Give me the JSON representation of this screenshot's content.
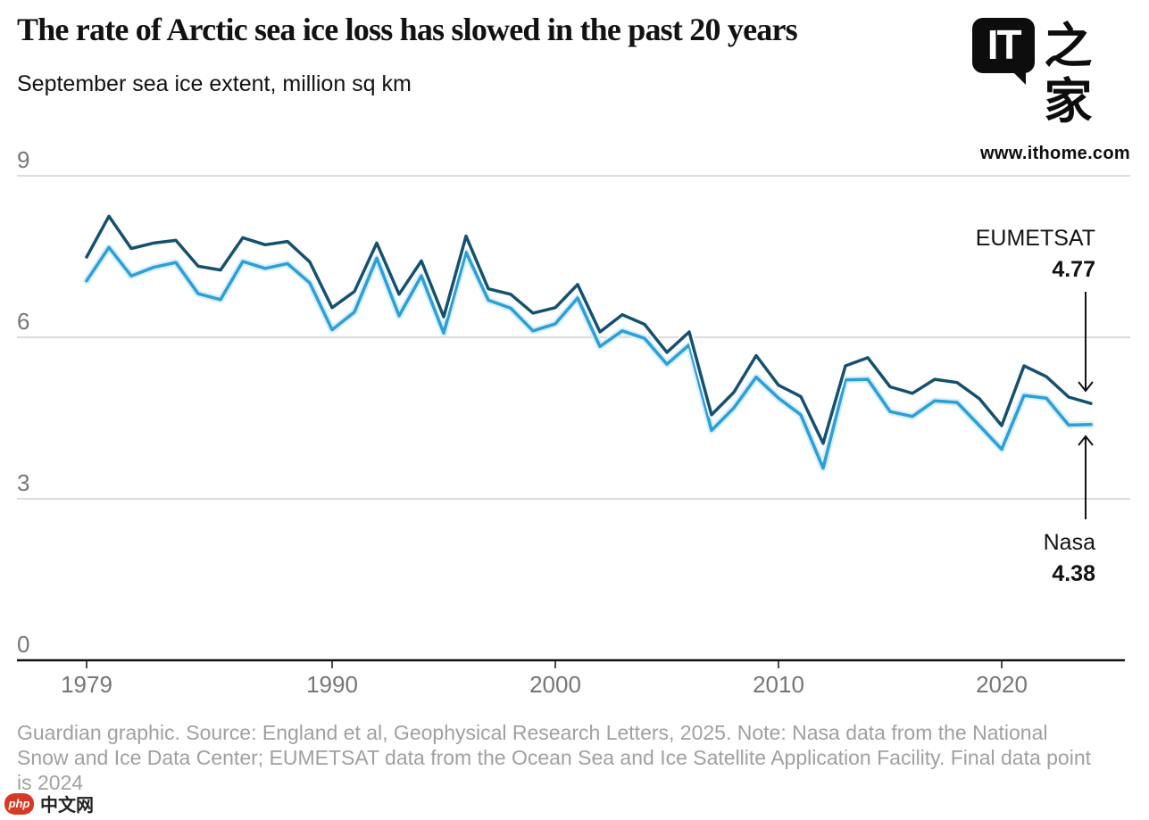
{
  "header": {
    "title": "The rate of Arctic sea ice loss has slowed in the past 20 years",
    "subtitle": "September sea ice extent, million sq km"
  },
  "branding": {
    "logo_text": "IT",
    "logo_cjk": "之家",
    "website": "www.ithome.com"
  },
  "annotations": {
    "eumetsat_label": "EUMETSAT",
    "eumetsat_value": "4.77",
    "nasa_label": "Nasa",
    "nasa_value": "4.38"
  },
  "footer": {
    "caption": "Guardian graphic. Source: England et al, Geophysical Research Letters, 2025. Note: Nasa data from the National Snow and Ice Data Center; EUMETSAT data from the Ocean Sea and Ice Satellite Application Facility. Final data point is 2024"
  },
  "watermark": {
    "badge": "php",
    "text": "中文网"
  },
  "colors": {
    "eumetsat_line": "#15516f",
    "nasa_line": "#2e9fd6",
    "nasa_halo": "#d9f0fa",
    "grid": "#dcdcdc",
    "axis": "#121212",
    "tick_label": "#767676",
    "footer_text": "#a0a0a0"
  },
  "chart_data": {
    "type": "line",
    "title": "The rate of Arctic sea ice loss has slowed in the past 20 years",
    "xlabel": "",
    "ylabel": "September sea ice extent, million sq km",
    "ylim": [
      0,
      9
    ],
    "yticks": [
      0,
      3,
      6,
      9
    ],
    "xticks": [
      1979,
      1990,
      2000,
      2010,
      2020
    ],
    "grid": "horizontal",
    "legend_position": "end-of-line annotations",
    "x": [
      1979,
      1980,
      1981,
      1982,
      1983,
      1984,
      1985,
      1986,
      1987,
      1988,
      1989,
      1990,
      1991,
      1992,
      1993,
      1994,
      1995,
      1996,
      1997,
      1998,
      1999,
      2000,
      2001,
      2002,
      2003,
      2004,
      2005,
      2006,
      2007,
      2008,
      2009,
      2010,
      2011,
      2012,
      2013,
      2014,
      2015,
      2016,
      2017,
      2018,
      2019,
      2020,
      2021,
      2022,
      2023,
      2024
    ],
    "series": [
      {
        "name": "EUMETSAT",
        "final_value": 4.77,
        "values": [
          7.49,
          8.25,
          7.65,
          7.75,
          7.8,
          7.32,
          7.25,
          7.85,
          7.72,
          7.78,
          7.4,
          6.55,
          6.85,
          7.75,
          6.8,
          7.42,
          6.38,
          7.88,
          6.9,
          6.8,
          6.45,
          6.55,
          6.98,
          6.1,
          6.42,
          6.24,
          5.72,
          6.1,
          4.56,
          4.98,
          5.66,
          5.11,
          4.9,
          4.03,
          5.47,
          5.62,
          5.08,
          4.96,
          5.22,
          5.16,
          4.86,
          4.36,
          5.47,
          5.27,
          4.89,
          4.77
        ]
      },
      {
        "name": "Nasa",
        "final_value": 4.38,
        "values": [
          7.05,
          7.67,
          7.14,
          7.3,
          7.39,
          6.81,
          6.7,
          7.41,
          7.28,
          7.37,
          7.01,
          6.14,
          6.47,
          7.47,
          6.4,
          7.14,
          6.08,
          7.58,
          6.69,
          6.54,
          6.12,
          6.25,
          6.73,
          5.83,
          6.12,
          5.98,
          5.5,
          5.86,
          4.27,
          4.69,
          5.26,
          4.87,
          4.56,
          3.57,
          5.21,
          5.22,
          4.62,
          4.53,
          4.82,
          4.79,
          4.36,
          3.92,
          4.92,
          4.87,
          4.37,
          4.38
        ]
      }
    ]
  }
}
